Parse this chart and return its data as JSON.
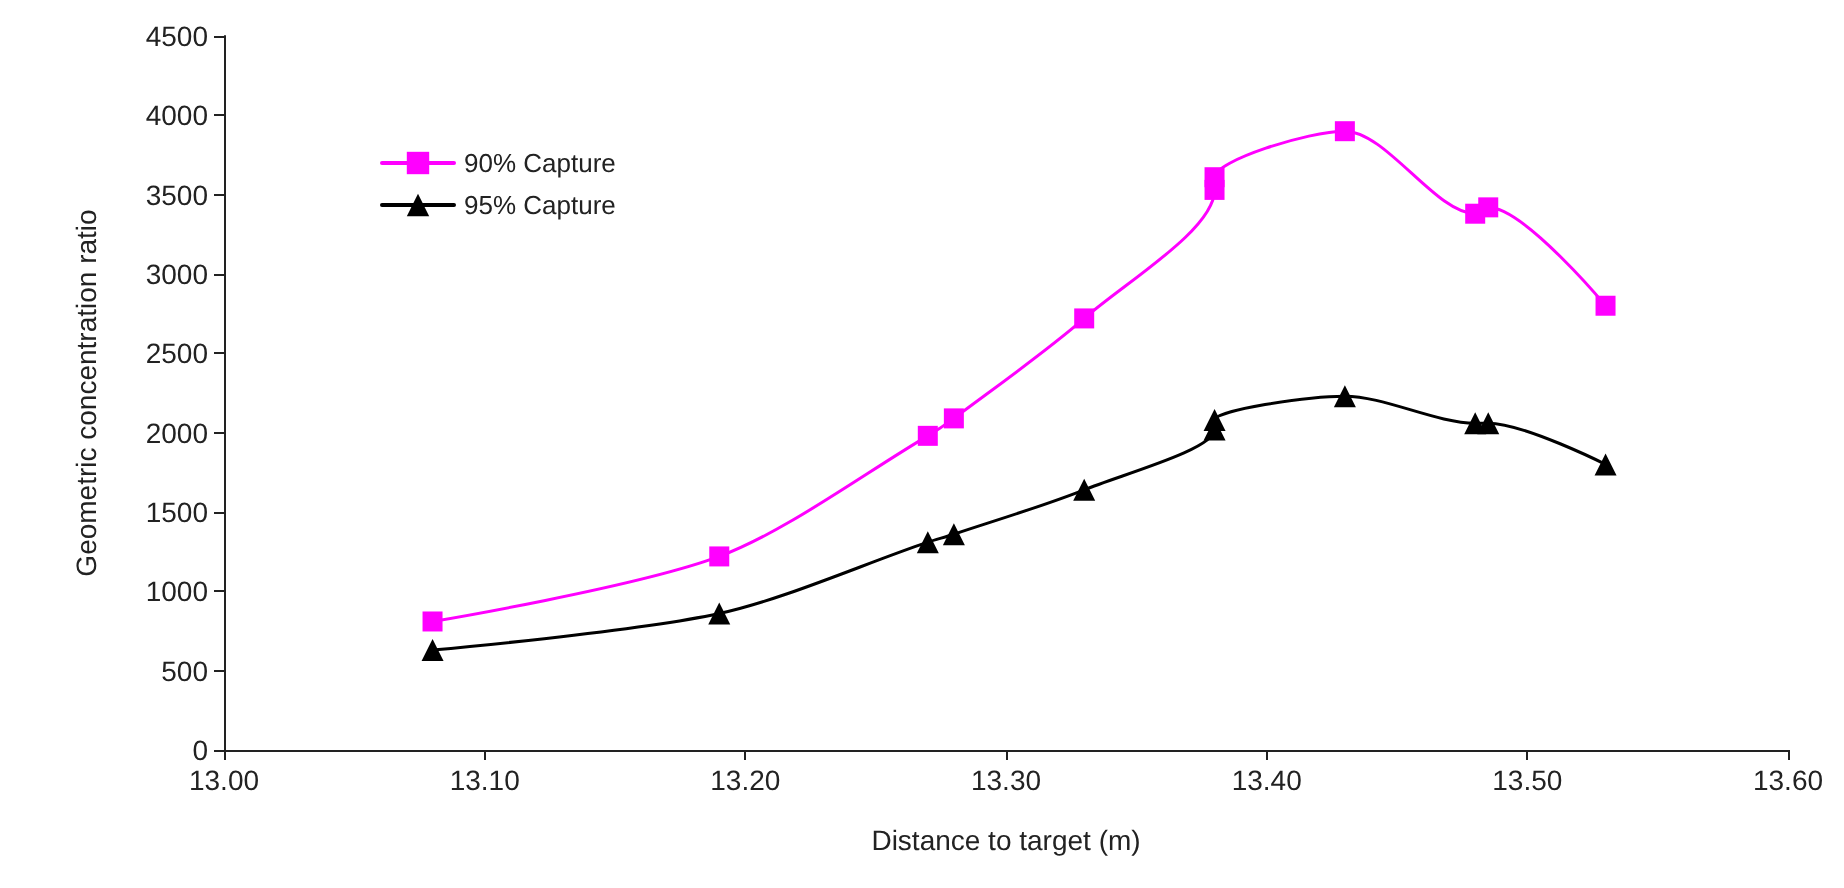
{
  "chart_data": {
    "type": "line",
    "xlabel": "Distance to target (m)",
    "ylabel": "Geometric concentration ratio",
    "xlim": [
      13.0,
      13.6
    ],
    "xticks": [
      {
        "value": 13.0,
        "label": "13.00"
      },
      {
        "value": 13.1,
        "label": "13.10"
      },
      {
        "value": 13.2,
        "label": "13.20"
      },
      {
        "value": 13.3,
        "label": "13.30"
      },
      {
        "value": 13.4,
        "label": "13.40"
      },
      {
        "value": 13.5,
        "label": "13.50"
      },
      {
        "value": 13.6,
        "label": "13.60"
      }
    ],
    "ylim": [
      0,
      4500
    ],
    "yticks": [
      0,
      500,
      1000,
      1500,
      2000,
      2500,
      3000,
      3500,
      4000,
      4500
    ],
    "grid": false,
    "legend": "top left",
    "line_style": "solid",
    "series": [
      {
        "name": "90% Capture",
        "color": "#ff00ff",
        "marker": "square",
        "x": [
          13.08,
          13.19,
          13.27,
          13.28,
          13.33,
          13.38,
          13.38,
          13.43,
          13.48,
          13.485,
          13.53
        ],
        "values": [
          810,
          1220,
          1980,
          2090,
          2720,
          3530,
          3610,
          3900,
          3380,
          3420,
          2800
        ]
      },
      {
        "name": "95% Capture",
        "color": "#000000",
        "marker": "triangle",
        "x": [
          13.08,
          13.19,
          13.27,
          13.28,
          13.33,
          13.38,
          13.38,
          13.43,
          13.48,
          13.485,
          13.53
        ],
        "values": [
          630,
          860,
          1310,
          1360,
          1640,
          2020,
          2080,
          2230,
          2060,
          2060,
          1800
        ]
      }
    ]
  }
}
